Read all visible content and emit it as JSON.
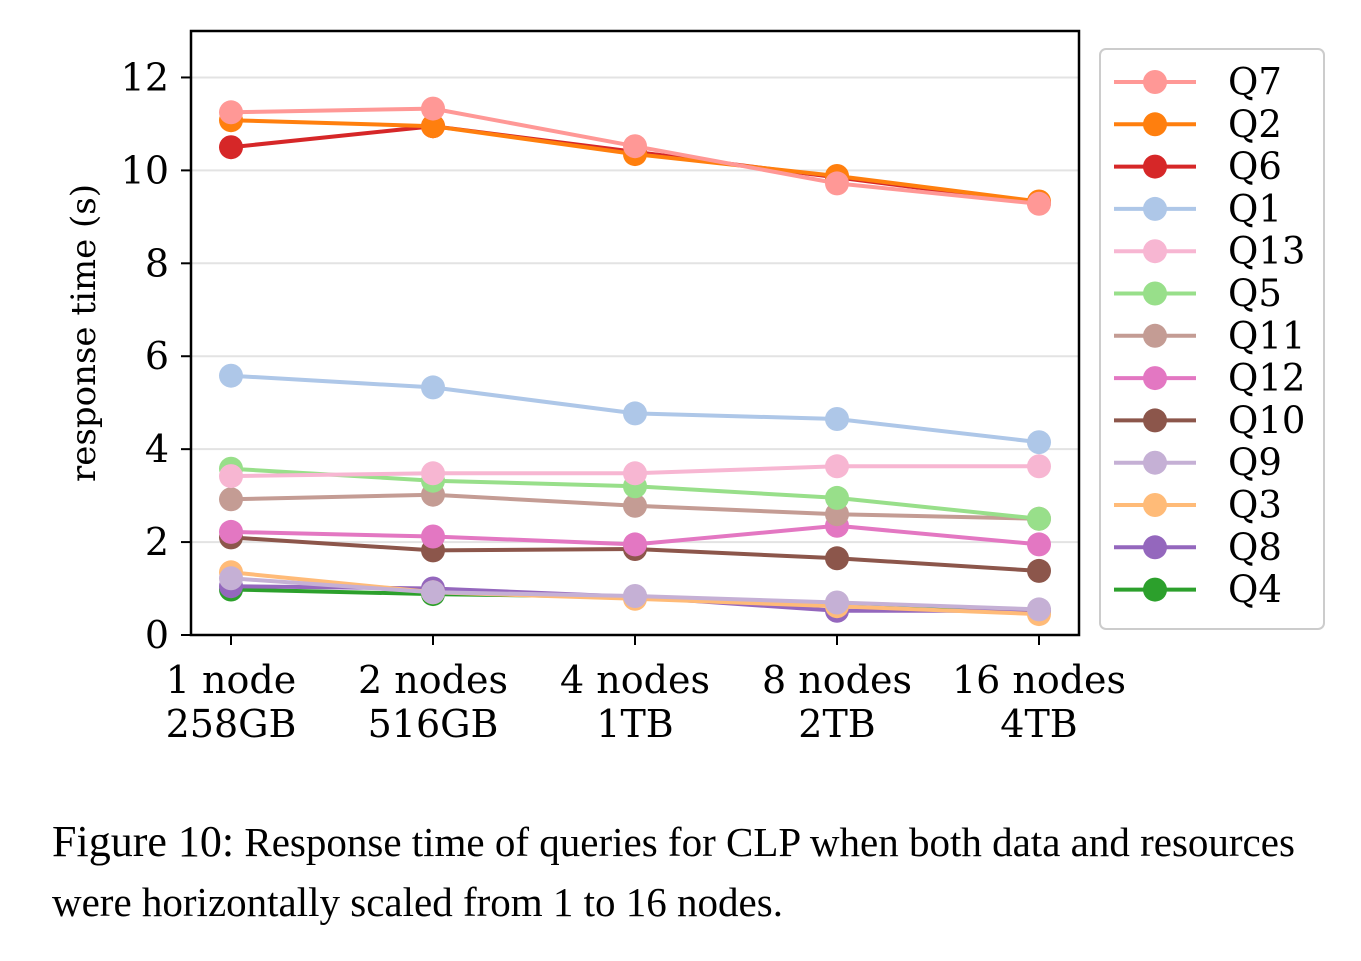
{
  "chart_data": {
    "type": "line",
    "title": "",
    "xlabel": "",
    "ylabel": "response time (s)",
    "ylim": [
      0,
      13
    ],
    "yticks": [
      0,
      2,
      4,
      6,
      8,
      10,
      12
    ],
    "grid": "y",
    "legend_position": "outside-right",
    "categories": [
      {
        "line1": "1 node",
        "line2": "258GB"
      },
      {
        "line1": "2 nodes",
        "line2": "516GB"
      },
      {
        "line1": "4 nodes",
        "line2": "1TB"
      },
      {
        "line1": "8 nodes",
        "line2": "2TB"
      },
      {
        "line1": "16 nodes",
        "line2": "4TB"
      }
    ],
    "series": [
      {
        "name": "Q4",
        "color": "#2ca02c",
        "values": [
          0.98,
          0.88,
          0.82,
          0.68,
          0.52
        ]
      },
      {
        "name": "Q8",
        "color": "#9467bd",
        "values": [
          1.05,
          1.0,
          0.82,
          0.52,
          0.52
        ]
      },
      {
        "name": "Q3",
        "color": "#ffbb78",
        "values": [
          1.35,
          0.92,
          0.78,
          0.62,
          0.45
        ]
      },
      {
        "name": "Q9",
        "color": "#c5b0d5",
        "values": [
          1.22,
          0.92,
          0.84,
          0.7,
          0.55
        ]
      },
      {
        "name": "Q10",
        "color": "#8c564b",
        "values": [
          2.1,
          1.82,
          1.85,
          1.65,
          1.38
        ]
      },
      {
        "name": "Q12",
        "color": "#e377c2",
        "values": [
          2.22,
          2.12,
          1.95,
          2.35,
          1.95
        ]
      },
      {
        "name": "Q11",
        "color": "#c49c94",
        "values": [
          2.92,
          3.02,
          2.78,
          2.6,
          2.5
        ]
      },
      {
        "name": "Q5",
        "color": "#98df8a",
        "values": [
          3.58,
          3.32,
          3.2,
          2.95,
          2.5
        ]
      },
      {
        "name": "Q13",
        "color": "#f7b6d2",
        "values": [
          3.42,
          3.48,
          3.48,
          3.63,
          3.63
        ]
      },
      {
        "name": "Q1",
        "color": "#aec7e8",
        "values": [
          5.58,
          5.33,
          4.77,
          4.65,
          4.15
        ]
      },
      {
        "name": "Q6",
        "color": "#d62728",
        "values": [
          10.5,
          10.95,
          10.4,
          9.85,
          9.3
        ]
      },
      {
        "name": "Q2",
        "color": "#ff7f0e",
        "values": [
          11.08,
          10.95,
          10.35,
          9.88,
          9.33
        ]
      },
      {
        "name": "Q7",
        "color": "#ff9896",
        "values": [
          11.25,
          11.33,
          10.52,
          9.72,
          9.28
        ]
      }
    ],
    "legend_order": [
      "Q7",
      "Q2",
      "Q6",
      "Q1",
      "Q13",
      "Q5",
      "Q11",
      "Q12",
      "Q10",
      "Q9",
      "Q3",
      "Q8",
      "Q4"
    ]
  },
  "caption": {
    "figure_number": "Figure 10:",
    "text": "Response time of queries for CLP when both data and resources were horizontally scaled from 1 to 16 nodes."
  }
}
